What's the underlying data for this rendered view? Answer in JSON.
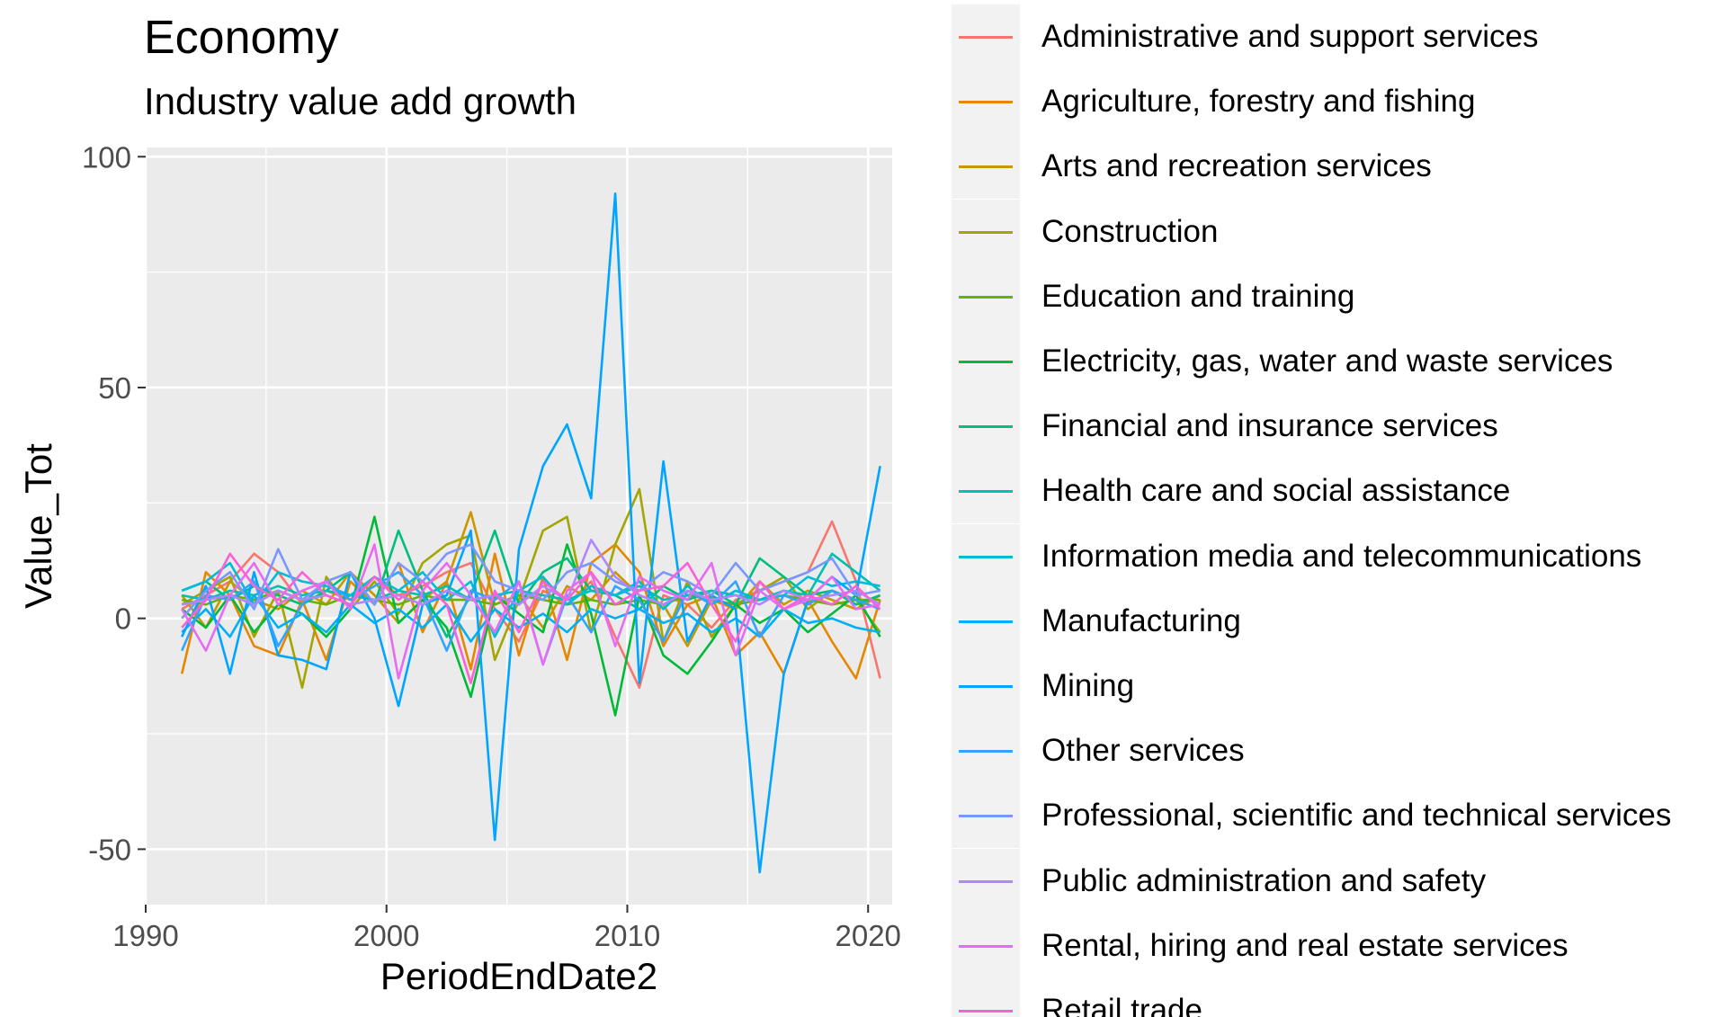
{
  "chart_data": {
    "type": "line",
    "title": "Economy",
    "subtitle": "Industry value add growth",
    "xlabel": "PeriodEndDate2",
    "ylabel": "Value_Tot",
    "xlim": [
      1990,
      2021
    ],
    "ylim": [
      -62,
      102
    ],
    "x_ticks": [
      "1990",
      "2000",
      "2010",
      "2020"
    ],
    "y_ticks": [
      "-50",
      "0",
      "50",
      "100"
    ],
    "grid": true,
    "legend_position": "right",
    "x": [
      1991.5,
      1992.5,
      1993.5,
      1994.5,
      1995.5,
      1996.5,
      1997.5,
      1998.5,
      1999.5,
      2000.5,
      2001.5,
      2002.5,
      2003.5,
      2004.5,
      2005.5,
      2006.5,
      2007.5,
      2008.5,
      2009.5,
      2010.5,
      2011.5,
      2012.5,
      2013.5,
      2014.5,
      2015.5,
      2016.5,
      2017.5,
      2018.5,
      2019.5,
      2020.5
    ],
    "series": [
      {
        "name": "Administrative and support services",
        "color": "#f8766d",
        "values": [
          2,
          5,
          8,
          14,
          10,
          3,
          6,
          4,
          9,
          5,
          7,
          10,
          12,
          2,
          -5,
          6,
          3,
          8,
          -4,
          -15,
          5,
          3,
          -2,
          4,
          6,
          8,
          10,
          21,
          8,
          -13
        ]
      },
      {
        "name": "Agriculture, forestry and fishing",
        "color": "#e58700",
        "values": [
          -12,
          10,
          5,
          -6,
          -8,
          4,
          -9,
          8,
          3,
          12,
          -3,
          8,
          -11,
          14,
          -8,
          9,
          -9,
          12,
          16,
          10,
          -6,
          3,
          5,
          -8,
          -3,
          -12,
          4,
          -5,
          -13,
          4
        ]
      },
      {
        "name": "Arts and recreation services",
        "color": "#c99800",
        "values": [
          5,
          -2,
          8,
          4,
          2,
          6,
          3,
          10,
          5,
          -1,
          4,
          8,
          23,
          3,
          5,
          -2,
          7,
          4,
          10,
          5,
          3,
          -6,
          4,
          2,
          8,
          3,
          6,
          4,
          2,
          5
        ]
      },
      {
        "name": "Construction",
        "color": "#a3a500",
        "values": [
          3,
          6,
          9,
          -4,
          6,
          -15,
          9,
          2,
          8,
          1,
          12,
          16,
          18,
          -9,
          4,
          19,
          22,
          -3,
          16,
          28,
          -5,
          8,
          -4,
          3,
          6,
          9,
          2,
          6,
          4,
          -3
        ]
      },
      {
        "name": "Education and training",
        "color": "#6bb100",
        "values": [
          4,
          3,
          5,
          4,
          6,
          4,
          3,
          5,
          4,
          3,
          5,
          4,
          4,
          3,
          5,
          4,
          3,
          4,
          3,
          4,
          3,
          5,
          4,
          3,
          4,
          5,
          4,
          3,
          4,
          4
        ]
      },
      {
        "name": "Electricity, gas, water and waste services",
        "color": "#00ba38",
        "values": [
          2,
          -2,
          5,
          -3,
          3,
          1,
          -4,
          2,
          22,
          -1,
          4,
          -2,
          -17,
          5,
          1,
          -3,
          16,
          1,
          -21,
          5,
          -8,
          -12,
          -5,
          3,
          -1,
          2,
          -3,
          1,
          5,
          -4
        ]
      },
      {
        "name": "Financial and insurance services",
        "color": "#00bf7d",
        "values": [
          6,
          8,
          4,
          7,
          5,
          3,
          6,
          10,
          3,
          19,
          6,
          -4,
          5,
          19,
          3,
          10,
          13,
          6,
          5,
          2,
          7,
          4,
          6,
          3,
          13,
          9,
          5,
          6,
          3,
          5
        ]
      },
      {
        "name": "Health care and social assistance",
        "color": "#00c0af",
        "values": [
          5,
          4,
          6,
          5,
          7,
          5,
          6,
          5,
          4,
          6,
          5,
          7,
          4,
          5,
          6,
          5,
          4,
          6,
          5,
          7,
          4,
          5,
          6,
          5,
          4,
          6,
          5,
          14,
          10,
          6
        ]
      },
      {
        "name": "Information media and telecommunications",
        "color": "#00bcd8",
        "values": [
          6,
          8,
          12,
          3,
          10,
          8,
          7,
          5,
          9,
          6,
          10,
          4,
          8,
          -4,
          6,
          9,
          3,
          7,
          5,
          8,
          2,
          7,
          3,
          6,
          4,
          5,
          9,
          7,
          8,
          7
        ]
      },
      {
        "name": "Manufacturing",
        "color": "#00b0f6",
        "values": [
          -3,
          2,
          -4,
          5,
          -2,
          1,
          -3,
          3,
          -1,
          2,
          -2,
          3,
          -5,
          2,
          -2,
          1,
          -3,
          2,
          0,
          2,
          -1,
          1,
          -3,
          0,
          -4,
          2,
          -1,
          0,
          -2,
          -3
        ]
      },
      {
        "name": "Mining",
        "color": "#00a5ff",
        "values": [
          -4,
          7,
          -12,
          10,
          -8,
          -9,
          -11,
          10,
          0,
          -19,
          3,
          5,
          19,
          -48,
          15,
          33,
          42,
          26,
          92,
          -14,
          34,
          -5,
          5,
          2,
          -55,
          -12,
          4,
          9,
          5,
          33
        ]
      },
      {
        "name": "Other services",
        "color": "#35a2ff",
        "values": [
          -7,
          5,
          4,
          8,
          -6,
          3,
          8,
          4,
          7,
          10,
          5,
          -7,
          6,
          4,
          8,
          -10,
          5,
          -3,
          7,
          4,
          -5,
          6,
          3,
          8,
          -4,
          5,
          3,
          6,
          4,
          2
        ]
      },
      {
        "name": "Professional, scientific and technical services",
        "color": "#7997ff",
        "values": [
          0,
          6,
          10,
          2,
          15,
          4,
          8,
          10,
          3,
          12,
          8,
          14,
          16,
          8,
          6,
          4,
          10,
          12,
          8,
          6,
          10,
          8,
          5,
          12,
          6,
          8,
          10,
          13,
          5,
          6
        ]
      },
      {
        "name": "Public administration and safety",
        "color": "#ae87ff",
        "values": [
          3,
          4,
          5,
          3,
          6,
          4,
          5,
          3,
          4,
          5,
          3,
          6,
          4,
          5,
          3,
          7,
          4,
          17,
          9,
          5,
          3,
          6,
          4,
          5,
          3,
          6,
          4,
          5,
          6,
          3
        ]
      },
      {
        "name": "Rental, hiring and real estate services",
        "color": "#e76bf3",
        "values": [
          2,
          -7,
          5,
          12,
          3,
          6,
          8,
          2,
          16,
          -13,
          6,
          12,
          5,
          -3,
          8,
          -10,
          6,
          10,
          -6,
          9,
          6,
          4,
          12,
          -8,
          6,
          2,
          4,
          9,
          2,
          3
        ]
      },
      {
        "name": "Retail trade",
        "color": "#fb61d7",
        "values": [
          -2,
          4,
          14,
          7,
          4,
          10,
          5,
          3,
          9,
          4,
          8,
          3,
          -14,
          6,
          -3,
          8,
          4,
          10,
          3,
          6,
          7,
          12,
          3,
          -5,
          8,
          2,
          5,
          3,
          7,
          2
        ]
      }
    ]
  }
}
